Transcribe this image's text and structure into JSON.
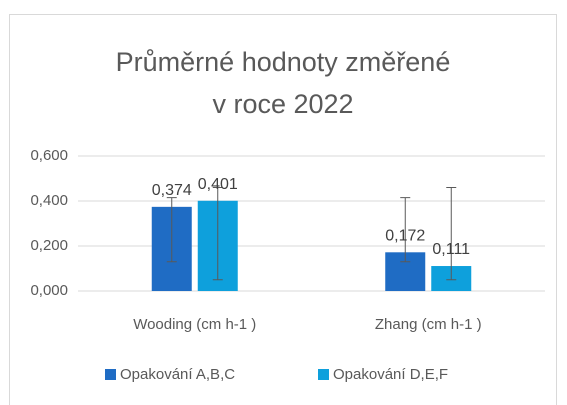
{
  "chart_data": {
    "type": "bar",
    "title": [
      "Průměrné hodnoty změřené",
      "v roce 2022"
    ],
    "categories": [
      "Wooding (cm h-1 )",
      "Zhang (cm h-1 )"
    ],
    "series": [
      {
        "name": "Opakování A,B,C",
        "color": "#1f6cc4",
        "values": [
          0.374,
          0.172
        ],
        "value_labels": [
          "0,374",
          "0,172"
        ],
        "error_range": [
          [
            0.13,
            0.415
          ],
          [
            0.13,
            0.415
          ]
        ]
      },
      {
        "name": "Opakování D,E,F",
        "color": "#0ea0dc",
        "values": [
          0.401,
          0.111
        ],
        "value_labels": [
          "0,401",
          "0,111"
        ],
        "error_range": [
          [
            0.05,
            0.46
          ],
          [
            0.05,
            0.46
          ]
        ]
      }
    ],
    "ylim": [
      0,
      0.6
    ],
    "yticks": [
      {
        "value": 0,
        "label": "0,000"
      },
      {
        "value": 0.2,
        "label": "0,200"
      },
      {
        "value": 0.4,
        "label": "0,400"
      },
      {
        "value": 0.6,
        "label": "0,600"
      }
    ],
    "grid": true,
    "legend": "bottom"
  }
}
